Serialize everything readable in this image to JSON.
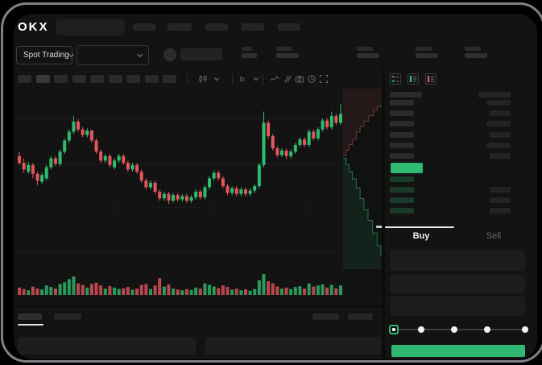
{
  "window": {
    "logo_text": "OKX"
  },
  "header": {
    "nav_item_count": 5
  },
  "subheader": {
    "market_type_selector": {
      "label": "Spot Trading"
    },
    "pair_selector_placeholder": true,
    "stat_group_count": 5
  },
  "chart_toolbar": {
    "timeframe_slot_count": 9,
    "icon_names": [
      "candlestick-icon",
      "chevron-down-icon",
      "indicator-icon",
      "chevron-down-icon",
      "curve-icon",
      "compare-icon",
      "camera-icon",
      "history-icon",
      "fullscreen-icon"
    ]
  },
  "order_book": {
    "view_icons": [
      "book-split-icon",
      "book-buy-icon",
      "book-sell-icon"
    ],
    "ask_row_count": 6,
    "bid_row_count": 4,
    "bid_amount_row_count": 3,
    "last_price_highlight_color": "#2eb872"
  },
  "trade_panel": {
    "tabs": [
      {
        "label": "Buy",
        "active": true
      },
      {
        "label": "Sell",
        "active": false
      }
    ],
    "field_count": 3,
    "slider": {
      "stop_count": 5,
      "active_stop_index": 0
    },
    "submit_button_color": "#2eb872"
  },
  "bottom_panel": {
    "tab_count": 2,
    "active_tab_index": 0,
    "right_control_count": 2,
    "panel_count": 2
  },
  "colors": {
    "background": "#131313",
    "skeleton": "#2a2a2a",
    "green": "#2eb872",
    "candle_green": "#2ebd70",
    "candle_red": "#e5555c",
    "text_primary": "#f2f2f2",
    "text_muted": "#6e6e6e"
  },
  "chart_data": {
    "type": "candlestick",
    "title": "",
    "axis_labels": "hidden in UI (skeleton placeholders)",
    "price_scale": [
      0,
      100
    ],
    "candle_format": [
      "open",
      "close",
      "high",
      "low",
      "volume"
    ],
    "candles": [
      [
        48,
        42,
        52,
        40,
        35
      ],
      [
        42,
        36,
        46,
        33,
        28
      ],
      [
        34,
        40,
        43,
        32,
        22
      ],
      [
        40,
        32,
        42,
        28,
        40
      ],
      [
        32,
        26,
        34,
        22,
        30
      ],
      [
        25,
        31,
        33,
        23,
        26
      ],
      [
        28,
        38,
        40,
        26,
        45
      ],
      [
        38,
        46,
        48,
        36,
        38
      ],
      [
        46,
        41,
        48,
        39,
        30
      ],
      [
        41,
        52,
        54,
        39,
        52
      ],
      [
        52,
        62,
        64,
        50,
        60
      ],
      [
        62,
        70,
        72,
        60,
        75
      ],
      [
        70,
        79,
        84,
        68,
        88
      ],
      [
        79,
        72,
        81,
        70,
        55
      ],
      [
        72,
        67,
        74,
        65,
        48
      ],
      [
        67,
        71,
        73,
        65,
        35
      ],
      [
        71,
        62,
        72,
        60,
        52
      ],
      [
        62,
        52,
        64,
        50,
        58
      ],
      [
        52,
        44,
        54,
        42,
        45
      ],
      [
        44,
        48,
        50,
        42,
        30
      ],
      [
        48,
        40,
        50,
        38,
        42
      ],
      [
        38,
        44,
        46,
        36,
        35
      ],
      [
        44,
        48,
        50,
        42,
        28
      ],
      [
        48,
        42,
        50,
        40,
        32
      ],
      [
        42,
        36,
        44,
        34,
        38
      ],
      [
        36,
        40,
        42,
        34,
        25
      ],
      [
        40,
        34,
        42,
        32,
        30
      ],
      [
        34,
        26,
        36,
        24,
        48
      ],
      [
        26,
        20,
        28,
        18,
        52
      ],
      [
        20,
        24,
        26,
        18,
        28
      ],
      [
        24,
        16,
        26,
        14,
        45
      ],
      [
        16,
        10,
        18,
        8,
        80
      ],
      [
        10,
        14,
        16,
        8,
        40
      ],
      [
        14,
        8,
        16,
        5,
        50
      ],
      [
        8,
        13,
        15,
        6,
        30
      ],
      [
        13,
        9,
        15,
        7,
        26
      ],
      [
        9,
        12,
        14,
        7,
        22
      ],
      [
        12,
        8,
        14,
        6,
        28
      ],
      [
        8,
        11,
        13,
        6,
        24
      ],
      [
        11,
        16,
        18,
        9,
        35
      ],
      [
        16,
        11,
        18,
        9,
        30
      ],
      [
        11,
        20,
        22,
        9,
        55
      ],
      [
        20,
        28,
        30,
        18,
        48
      ],
      [
        28,
        33,
        35,
        26,
        40
      ],
      [
        33,
        28,
        35,
        26,
        32
      ],
      [
        28,
        21,
        30,
        19,
        45
      ],
      [
        21,
        15,
        23,
        13,
        38
      ],
      [
        15,
        19,
        21,
        13,
        25
      ],
      [
        19,
        14,
        21,
        12,
        30
      ],
      [
        14,
        18,
        20,
        12,
        22
      ],
      [
        18,
        14,
        20,
        12,
        26
      ],
      [
        14,
        17,
        19,
        12,
        20
      ],
      [
        17,
        21,
        23,
        15,
        28
      ],
      [
        21,
        40,
        42,
        19,
        70
      ],
      [
        40,
        78,
        88,
        38,
        100
      ],
      [
        78,
        66,
        80,
        64,
        65
      ],
      [
        66,
        55,
        68,
        53,
        55
      ],
      [
        55,
        49,
        57,
        47,
        40
      ],
      [
        49,
        53,
        55,
        47,
        30
      ],
      [
        53,
        48,
        55,
        45,
        35
      ],
      [
        48,
        52,
        54,
        46,
        28
      ],
      [
        52,
        58,
        60,
        50,
        38
      ],
      [
        58,
        63,
        65,
        56,
        42
      ],
      [
        63,
        58,
        65,
        56,
        30
      ],
      [
        58,
        70,
        72,
        56,
        55
      ],
      [
        70,
        64,
        72,
        62,
        40
      ],
      [
        64,
        72,
        74,
        62,
        45
      ],
      [
        72,
        80,
        82,
        70,
        50
      ],
      [
        80,
        74,
        82,
        72,
        35
      ],
      [
        74,
        84,
        88,
        72,
        48
      ],
      [
        84,
        78,
        86,
        76,
        32
      ],
      [
        78,
        86,
        95,
        76,
        45
      ]
    ],
    "depth_overlay": {
      "asks_line": [
        [
          0,
          0.37
        ],
        [
          0.08,
          0.34
        ],
        [
          0.16,
          0.31
        ],
        [
          0.25,
          0.28
        ],
        [
          0.35,
          0.24
        ],
        [
          0.45,
          0.21
        ],
        [
          0.55,
          0.18
        ],
        [
          0.68,
          0.15
        ],
        [
          0.8,
          0.12
        ],
        [
          0.9,
          0.1
        ],
        [
          1,
          0.09
        ]
      ],
      "bids_line": [
        [
          0,
          0.385
        ],
        [
          0.08,
          0.42
        ],
        [
          0.16,
          0.46
        ],
        [
          0.25,
          0.5
        ],
        [
          0.35,
          0.55
        ],
        [
          0.45,
          0.61
        ],
        [
          0.55,
          0.67
        ],
        [
          0.66,
          0.73
        ],
        [
          0.78,
          0.8
        ],
        [
          0.9,
          0.87
        ],
        [
          1,
          0.93
        ]
      ]
    },
    "last_price_marker_y_frac": 0.76,
    "grid": "faint horizontal + vertical lines",
    "legend": "none visible"
  }
}
